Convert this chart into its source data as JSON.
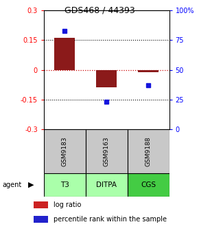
{
  "title": "GDS468 / 44393",
  "samples": [
    "GSM9183",
    "GSM9163",
    "GSM9188"
  ],
  "agents": [
    "T3",
    "DITPA",
    "CGS"
  ],
  "log_ratios": [
    0.162,
    -0.087,
    -0.012
  ],
  "percentile_ranks": [
    83,
    23,
    37
  ],
  "ylim_left": [
    -0.3,
    0.3
  ],
  "ylim_right": [
    0,
    100
  ],
  "yticks_left": [
    -0.3,
    -0.15,
    0,
    0.15,
    0.3
  ],
  "yticks_right": [
    0,
    25,
    50,
    75,
    100
  ],
  "ytick_labels_right": [
    "0",
    "25",
    "50",
    "75",
    "100%"
  ],
  "ytick_labels_left": [
    "-0.3",
    "-0.15",
    "0",
    "0.15",
    "0.3"
  ],
  "bar_color": "#8B1A1A",
  "dot_color": "#1515DC",
  "hline_color_red": "#CC0000",
  "agent_colors": [
    "#AAFFAA",
    "#AAFFAA",
    "#44CC44"
  ],
  "sample_box_color": "#C8C8C8",
  "bar_width": 0.5,
  "legend_red_color": "#CC2222",
  "legend_blue_color": "#2222CC"
}
